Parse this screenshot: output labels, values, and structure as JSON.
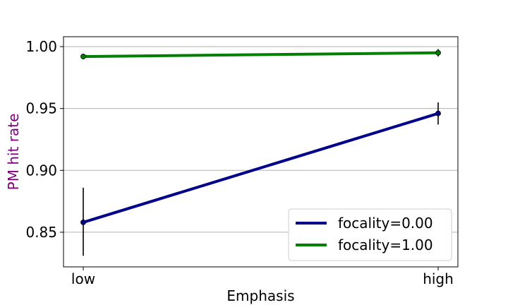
{
  "chart_data": {
    "type": "line",
    "xlabel": "Emphasis",
    "ylabel": "PM hit rate",
    "ylabel_color": "#800080",
    "categories": [
      "low",
      "high"
    ],
    "ylim": [
      0.822,
      1.008
    ],
    "yticks": [
      0.85,
      0.9,
      0.95,
      1.0
    ],
    "ytick_labels": [
      "0.85",
      "0.90",
      "0.95",
      "1.00"
    ],
    "grid": "horizontal",
    "legend_position": "lower-right",
    "series": [
      {
        "name": "focality=0.00",
        "color": "#00008b",
        "values": [
          0.858,
          0.946
        ],
        "error_low": [
          0.831,
          0.937
        ],
        "error_high": [
          0.886,
          0.955
        ]
      },
      {
        "name": "focality=1.00",
        "color": "#008000",
        "values": [
          0.992,
          0.995
        ],
        "error_low": [
          0.991,
          0.992
        ],
        "error_high": [
          0.993,
          0.998
        ]
      }
    ]
  }
}
